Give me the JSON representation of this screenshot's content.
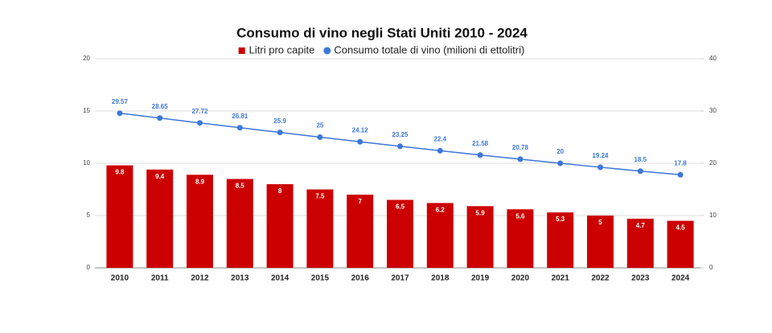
{
  "chart_data": {
    "type": "bar",
    "title": "Consumo di vino negli Stati Uniti 2010 - 2024",
    "categories": [
      "2010",
      "2011",
      "2012",
      "2013",
      "2014",
      "2015",
      "2016",
      "2017",
      "2018",
      "2019",
      "2020",
      "2021",
      "2022",
      "2023",
      "2024"
    ],
    "series": [
      {
        "name": "Litri pro capite",
        "color": "#cc0000",
        "values": [
          9.8,
          9.4,
          8.9,
          8.5,
          8,
          7.5,
          7,
          6.5,
          6.2,
          5.9,
          5.6,
          5.3,
          5,
          4.7,
          4.5
        ]
      },
      {
        "name": "Consumo totale di vino (milioni di ettolitri)",
        "color": "#3c78d8",
        "type": "line",
        "axis": "y2",
        "values": [
          29.57,
          28.65,
          27.72,
          26.81,
          25.9,
          25,
          24.12,
          23.25,
          22.4,
          21.58,
          20.78,
          20,
          19.24,
          18.5,
          17.8
        ]
      }
    ],
    "ylim": [
      0,
      20
    ],
    "yticks": [
      0,
      5,
      10,
      15,
      20
    ],
    "y2lim": [
      0,
      40
    ],
    "y2ticks": [
      0,
      10,
      20,
      30,
      40
    ],
    "grid": true,
    "legend": "top"
  }
}
